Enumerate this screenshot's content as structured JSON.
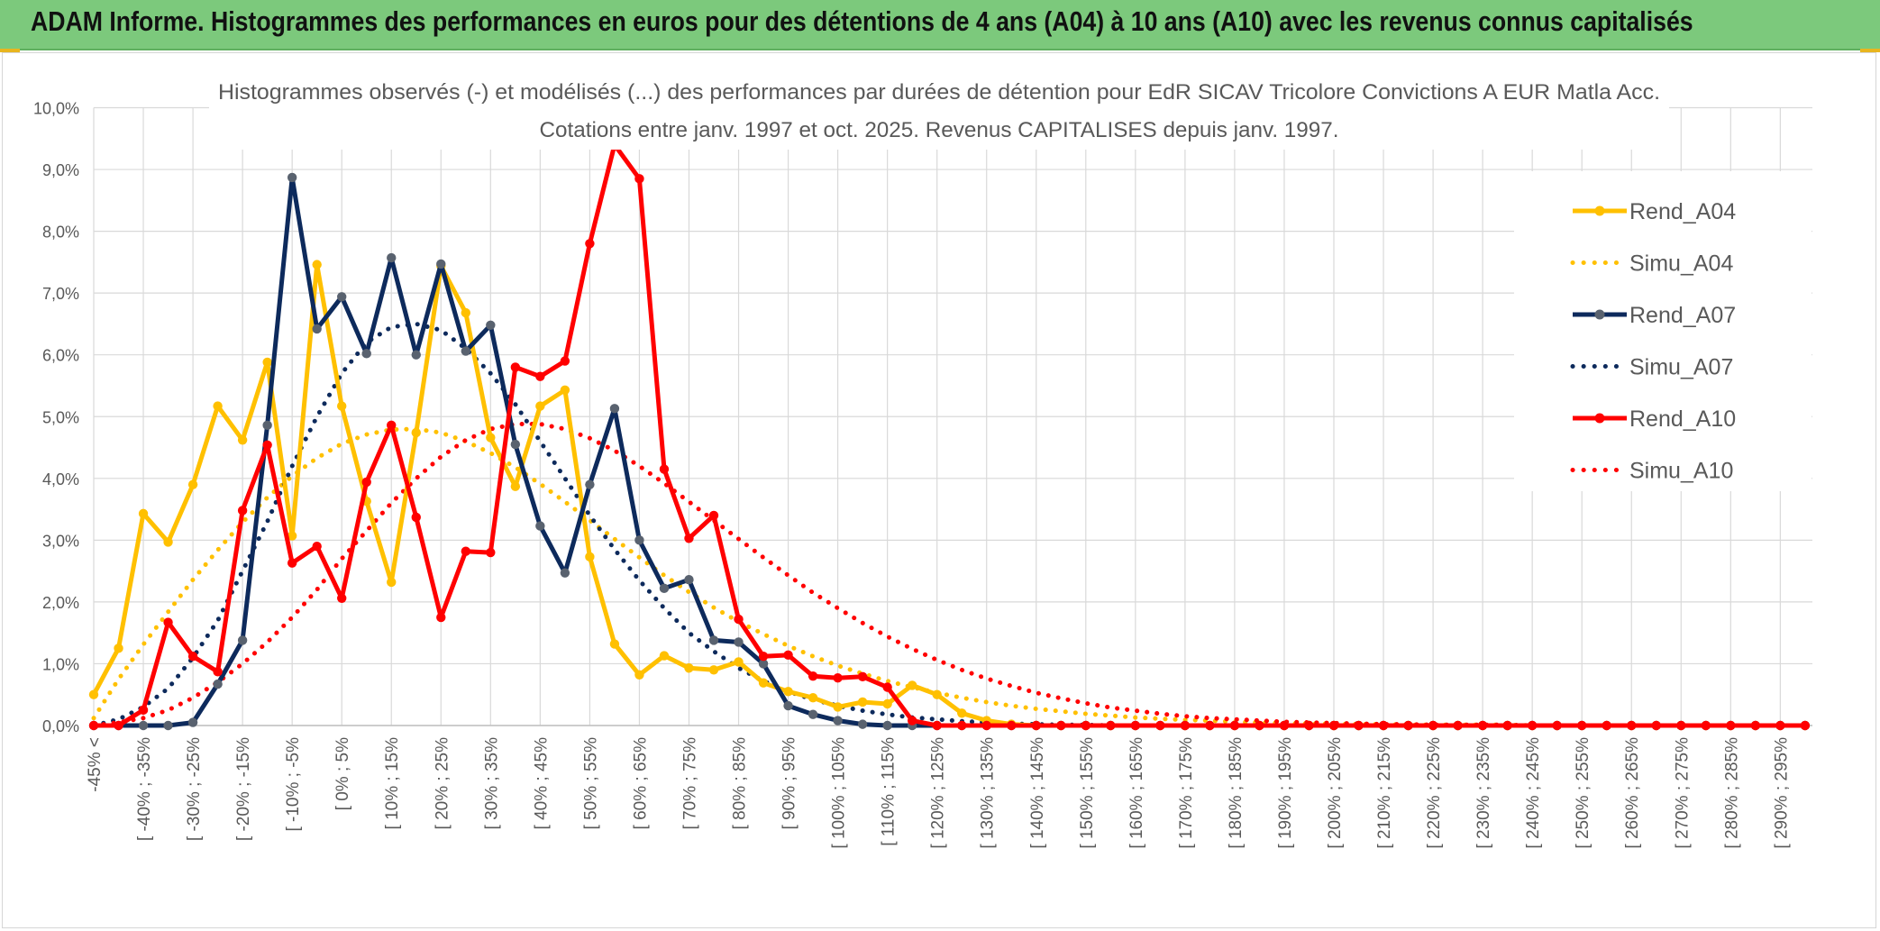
{
  "header": {
    "title": "ADAM Informe. Histogrammes des performances en euros pour des détentions de 4 ans (A04) à 10 ans (A10) avec les revenus connus capitalisés"
  },
  "colors": {
    "banner": "#7cc97c",
    "A04": "#ffc000",
    "A07": "#0d2a5c",
    "A07_marker": "#59626f",
    "A10": "#ff0000",
    "grid": "#d9d9d9"
  },
  "chart_data": {
    "type": "line",
    "title": "Histogrammes observés (-) et modélisés (...) des performances par durées de détention pour EdR SICAV Tricolore Convictions A EUR Matla Acc.",
    "subtitle": "Cotations entre janv. 1997 et oct. 2025. Revenus CAPITALISES depuis janv. 1997.",
    "xlabel": "",
    "ylabel": "",
    "ylim": [
      0,
      10
    ],
    "y_ticks": [
      "0,0%",
      "1,0%",
      "2,0%",
      "3,0%",
      "4,0%",
      "5,0%",
      "6,0%",
      "7,0%",
      "8,0%",
      "9,0%",
      "10,0%"
    ],
    "grid": true,
    "legend_position": "right",
    "x_tick_labels": [
      "-45% <",
      "[ -40% ; -35%",
      "[ -30% ; -25%",
      "[ -20% ; -15%",
      "[ -10% ; -5%",
      "[ 0% ; 5%",
      "[ 10% ; 15%",
      "[ 20% ; 25%",
      "[ 30% ; 35%",
      "[ 40% ; 45%",
      "[ 50% ; 55%",
      "[ 60% ; 65%",
      "[ 70% ; 75%",
      "[ 80% ; 85%",
      "[ 90% ; 95%",
      "[ 100% ; 105%",
      "[ 110% ; 115%",
      "[ 120% ; 125%",
      "[ 130% ; 135%",
      "[ 140% ; 145%",
      "[ 150% ; 155%",
      "[ 160% ; 165%",
      "[ 170% ; 175%",
      "[ 180% ; 185%",
      "[ 190% ; 195%",
      "[ 200% ; 205%",
      "[ 210% ; 215%",
      "[ 220% ; 225%",
      "[ 230% ; 235%",
      "[ 240% ; 245%",
      "[ 250% ; 255%",
      "[ 260% ; 265%",
      "[ 270% ; 275%",
      "[ 280% ; 285%",
      "[ 290% ; 295%"
    ],
    "series": [
      {
        "name": "Rend_A04",
        "style": "solid",
        "color": "#ffc000",
        "values": [
          0.5,
          1.25,
          3.43,
          2.97,
          3.9,
          5.17,
          4.62,
          5.88,
          3.07,
          7.46,
          5.17,
          3.63,
          2.32,
          4.74,
          7.44,
          6.68,
          4.66,
          3.87,
          5.17,
          5.43,
          2.73,
          1.32,
          0.82,
          1.13,
          0.93,
          0.9,
          1.03,
          0.69,
          0.55,
          0.45,
          0.3,
          0.38,
          0.35,
          0.65,
          0.5,
          0.2,
          0.08,
          0.02,
          0,
          0,
          0,
          0,
          0,
          0,
          0,
          0,
          0,
          0,
          0,
          0,
          0,
          0,
          0,
          0,
          0,
          0,
          0,
          0,
          0,
          0,
          0,
          0,
          0,
          0,
          0,
          0,
          0,
          0,
          0,
          0
        ]
      },
      {
        "name": "Simu_A04",
        "style": "dotted",
        "color": "#ffc000",
        "values": [
          0.12,
          0.75,
          1.31,
          1.84,
          2.36,
          2.84,
          3.29,
          3.69,
          4.04,
          4.33,
          4.56,
          4.71,
          4.79,
          4.8,
          4.74,
          4.6,
          4.41,
          4.18,
          3.91,
          3.62,
          3.32,
          3.02,
          2.72,
          2.43,
          2.16,
          1.91,
          1.68,
          1.48,
          1.29,
          1.12,
          0.97,
          0.84,
          0.72,
          0.62,
          0.53,
          0.45,
          0.38,
          0.32,
          0.27,
          0.23,
          0.19,
          0.16,
          0.13,
          0.11,
          0.09,
          0.08,
          0.06,
          0.05,
          0.04,
          0.03,
          0.03,
          0.02,
          0.02,
          0.01,
          0.01,
          0.01,
          0.01,
          0.01,
          0,
          0,
          0,
          0,
          0,
          0,
          0,
          0,
          0,
          0,
          0,
          0
        ]
      },
      {
        "name": "Rend_A07",
        "style": "solid",
        "color": "#0d2a5c",
        "values": [
          0,
          0,
          0,
          0,
          0.05,
          0.67,
          1.38,
          4.86,
          8.87,
          6.42,
          6.94,
          6.02,
          7.57,
          6.0,
          7.47,
          6.06,
          6.48,
          4.55,
          3.23,
          2.47,
          3.9,
          5.13,
          3.0,
          2.22,
          2.36,
          1.38,
          1.35,
          1.0,
          0.32,
          0.18,
          0.08,
          0.02,
          0,
          0,
          0,
          0,
          0,
          0,
          0,
          0,
          0,
          0,
          0,
          0,
          0,
          0,
          0,
          0,
          0,
          0,
          0,
          0,
          0,
          0,
          0,
          0,
          0,
          0,
          0,
          0,
          0,
          0,
          0,
          0,
          0,
          0,
          0,
          0,
          0,
          0
        ]
      },
      {
        "name": "Simu_A07",
        "style": "dotted",
        "color": "#0d2a5c",
        "values": [
          0,
          0.1,
          0.3,
          0.6,
          1.1,
          1.7,
          2.5,
          3.3,
          4.2,
          5.0,
          5.7,
          6.2,
          6.45,
          6.5,
          6.4,
          6.1,
          5.7,
          5.2,
          4.6,
          4.0,
          3.4,
          2.85,
          2.35,
          1.9,
          1.5,
          1.2,
          0.93,
          0.72,
          0.55,
          0.42,
          0.32,
          0.24,
          0.18,
          0.13,
          0.1,
          0.07,
          0.05,
          0.03,
          0.02,
          0.01,
          0.01,
          0,
          0,
          0,
          0,
          0,
          0,
          0,
          0,
          0,
          0,
          0,
          0,
          0,
          0,
          0,
          0,
          0,
          0,
          0,
          0,
          0,
          0,
          0,
          0,
          0,
          0,
          0,
          0,
          0
        ]
      },
      {
        "name": "Rend_A10",
        "style": "solid",
        "color": "#ff0000",
        "values": [
          0,
          0,
          0.25,
          1.67,
          1.12,
          0.87,
          3.48,
          4.54,
          2.63,
          2.9,
          2.06,
          3.94,
          4.86,
          3.37,
          1.75,
          2.82,
          2.8,
          5.8,
          5.65,
          5.9,
          7.8,
          9.4,
          8.85,
          4.15,
          3.03,
          3.4,
          1.72,
          1.12,
          1.14,
          0.8,
          0.77,
          0.79,
          0.62,
          0.08,
          0,
          0,
          0,
          0,
          0,
          0,
          0,
          0,
          0,
          0,
          0,
          0,
          0,
          0,
          0,
          0,
          0,
          0,
          0,
          0,
          0,
          0,
          0,
          0,
          0,
          0,
          0,
          0,
          0,
          0,
          0,
          0,
          0,
          0,
          0,
          0
        ]
      },
      {
        "name": "Simu_A10",
        "style": "dotted",
        "color": "#ff0000",
        "values": [
          0,
          0.05,
          0.12,
          0.25,
          0.45,
          0.7,
          1.0,
          1.35,
          1.75,
          2.2,
          2.7,
          3.15,
          3.6,
          4.0,
          4.35,
          4.62,
          4.8,
          4.88,
          4.88,
          4.8,
          4.65,
          4.45,
          4.2,
          3.92,
          3.62,
          3.32,
          3.02,
          2.72,
          2.43,
          2.15,
          1.9,
          1.66,
          1.44,
          1.24,
          1.06,
          0.9,
          0.76,
          0.64,
          0.53,
          0.44,
          0.36,
          0.29,
          0.24,
          0.19,
          0.15,
          0.12,
          0.1,
          0.08,
          0.06,
          0.05,
          0.04,
          0.03,
          0.02,
          0.02,
          0.01,
          0.01,
          0.01,
          0.01,
          0,
          0,
          0,
          0,
          0,
          0,
          0,
          0,
          0,
          0,
          0,
          0
        ]
      }
    ]
  }
}
